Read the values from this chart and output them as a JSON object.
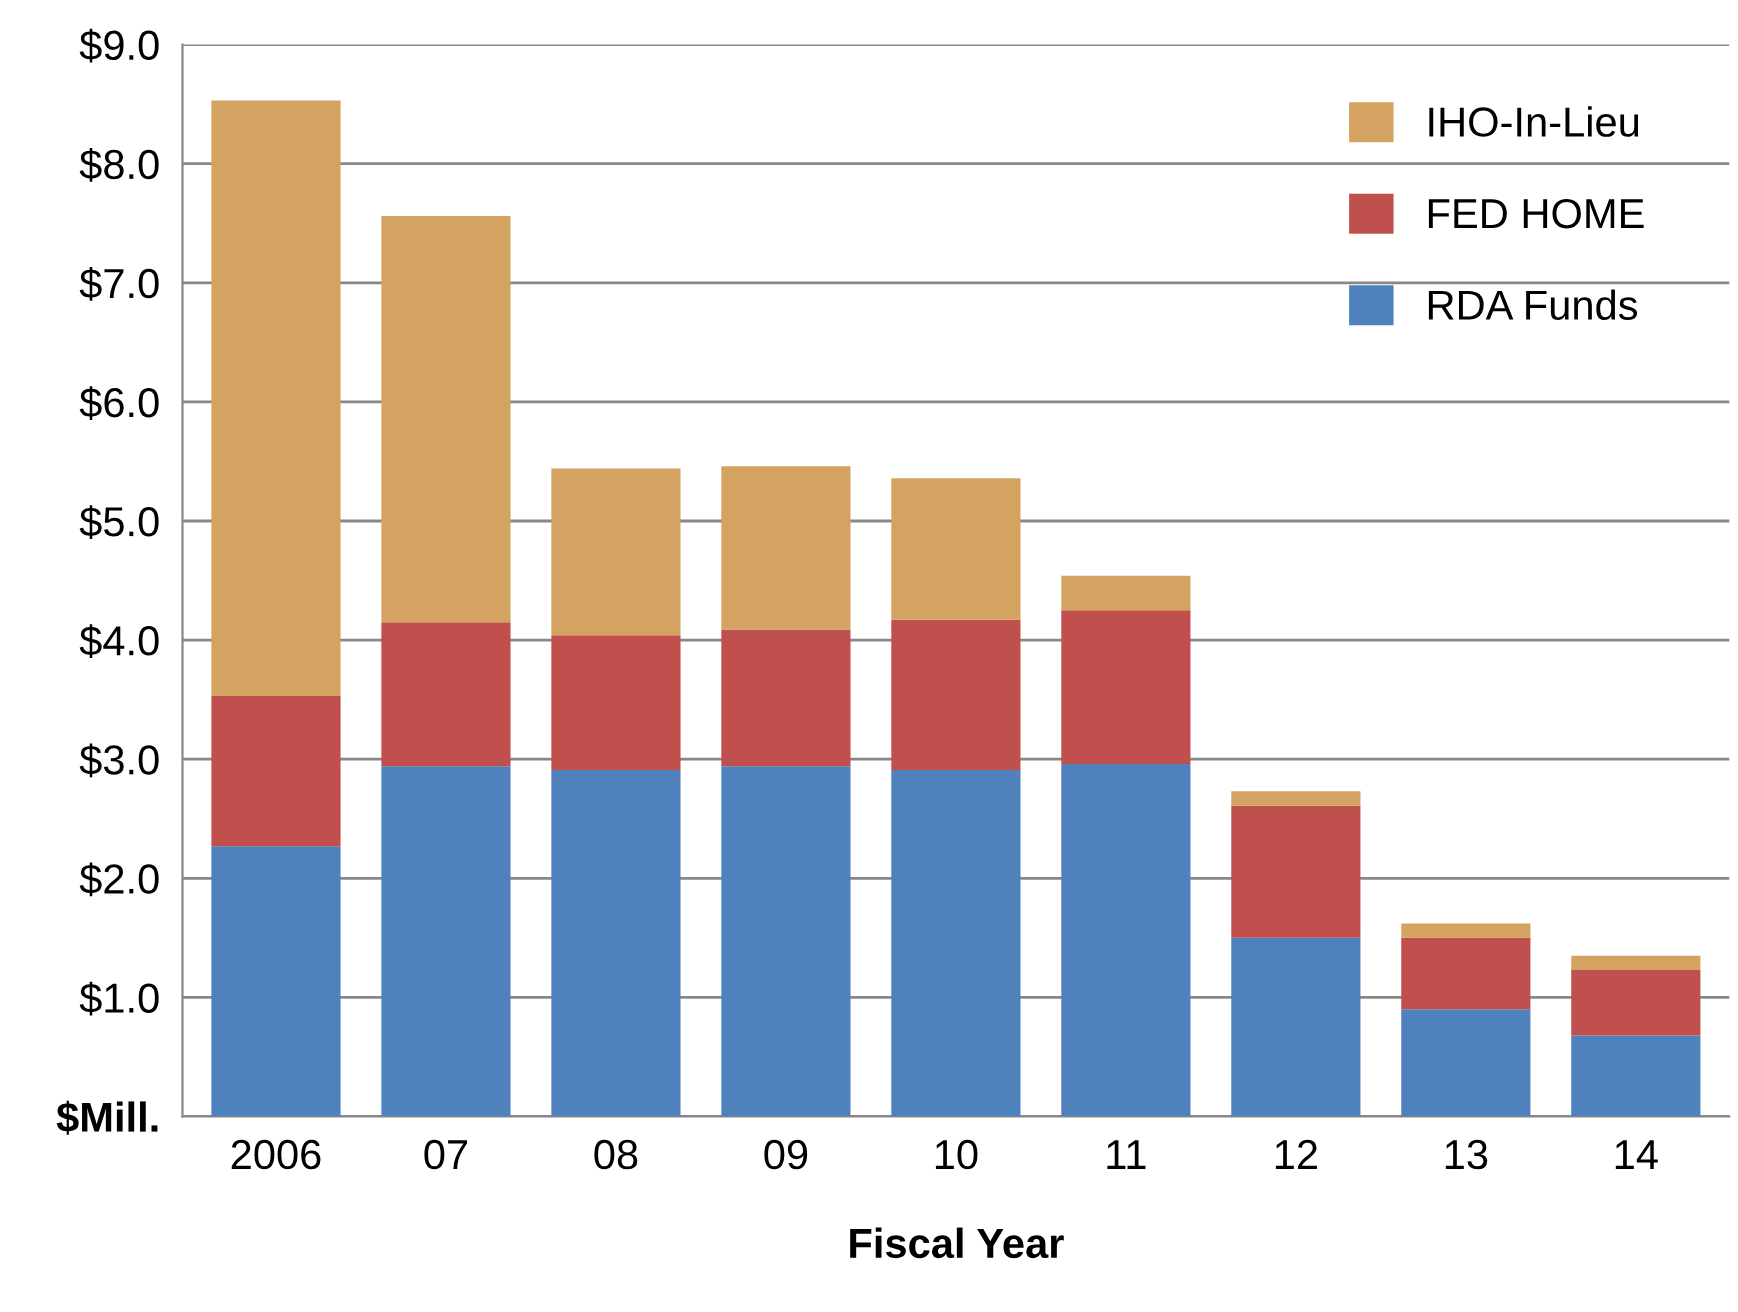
{
  "chart_data": {
    "type": "bar",
    "stacked": true,
    "xlabel": "Fiscal Year",
    "categories": [
      "2006",
      "07",
      "08",
      "09",
      "10",
      "11",
      "12",
      "13",
      "14"
    ],
    "series": [
      {
        "name": "RDA Funds",
        "color": "#4f81bd",
        "values": [
          2.27,
          2.94,
          2.91,
          2.94,
          2.91,
          2.96,
          1.5,
          0.9,
          0.68
        ]
      },
      {
        "name": "FED HOME",
        "color": "#c0504d",
        "values": [
          1.26,
          1.21,
          1.13,
          1.15,
          1.26,
          1.29,
          1.11,
          0.6,
          0.55
        ]
      },
      {
        "name": "IHO-In-Lieu",
        "color": "#d4a361",
        "values": [
          5.0,
          3.41,
          1.4,
          1.37,
          1.19,
          0.29,
          0.12,
          0.12,
          0.12
        ]
      }
    ],
    "ylim": [
      0,
      9
    ],
    "yticks": [
      {
        "value": 0,
        "label": "$Mill."
      },
      {
        "value": 1,
        "label": "$1.0"
      },
      {
        "value": 2,
        "label": "$2.0"
      },
      {
        "value": 3,
        "label": "$3.0"
      },
      {
        "value": 4,
        "label": "$4.0"
      },
      {
        "value": 5,
        "label": "$5.0"
      },
      {
        "value": 6,
        "label": "$6.0"
      },
      {
        "value": 7,
        "label": "$7.0"
      },
      {
        "value": 8,
        "label": "$8.0"
      },
      {
        "value": 9,
        "label": "$9.0"
      }
    ],
    "grid": "y",
    "legend": "top right"
  }
}
